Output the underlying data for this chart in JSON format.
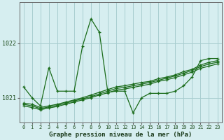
{
  "xlabel": "Graphe pression niveau de la mer (hPa)",
  "background_color": "#d6eef0",
  "grid_color": "#a8cdd0",
  "line_color": "#1a6b1a",
  "xlim": [
    -0.5,
    23.5
  ],
  "ylim": [
    1020.55,
    1022.75
  ],
  "yticks": [
    1021,
    1022
  ],
  "xticks": [
    0,
    1,
    2,
    3,
    4,
    5,
    6,
    7,
    8,
    9,
    10,
    11,
    12,
    13,
    14,
    15,
    16,
    17,
    18,
    19,
    20,
    21,
    22,
    23
  ],
  "series": [
    {
      "x": [
        0,
        1,
        2,
        3,
        4,
        5,
        6,
        7,
        8,
        9,
        10,
        11,
        12,
        13,
        14,
        15,
        16,
        17,
        18,
        19,
        20,
        21,
        22,
        23
      ],
      "y": [
        1021.2,
        1021.0,
        1020.85,
        1021.55,
        1021.12,
        1021.12,
        1021.12,
        1021.95,
        1022.45,
        1022.2,
        1021.1,
        1021.12,
        1021.12,
        1020.72,
        1021.0,
        1021.08,
        1021.08,
        1021.08,
        1021.12,
        1021.22,
        1021.38,
        1021.68,
        1021.72,
        1021.72
      ]
    },
    {
      "x": [
        0,
        1,
        2,
        3,
        4,
        5,
        6,
        7,
        8,
        9,
        10,
        11,
        12,
        13,
        14,
        15,
        16,
        17,
        18,
        19,
        20,
        21,
        22,
        23
      ],
      "y": [
        1020.9,
        1020.88,
        1020.82,
        1020.85,
        1020.88,
        1020.92,
        1020.96,
        1021.0,
        1021.05,
        1021.1,
        1021.15,
        1021.2,
        1021.22,
        1021.25,
        1021.28,
        1021.3,
        1021.35,
        1021.38,
        1021.42,
        1021.48,
        1021.52,
        1021.6,
        1021.65,
        1021.68
      ]
    },
    {
      "x": [
        0,
        1,
        2,
        3,
        4,
        5,
        6,
        7,
        8,
        9,
        10,
        11,
        12,
        13,
        14,
        15,
        16,
        17,
        18,
        19,
        20,
        21,
        22,
        23
      ],
      "y": [
        1020.88,
        1020.85,
        1020.8,
        1020.83,
        1020.86,
        1020.9,
        1020.94,
        1020.98,
        1021.02,
        1021.07,
        1021.12,
        1021.17,
        1021.19,
        1021.22,
        1021.25,
        1021.28,
        1021.32,
        1021.36,
        1021.4,
        1021.45,
        1021.5,
        1021.57,
        1021.62,
        1021.65
      ]
    },
    {
      "x": [
        0,
        1,
        2,
        3,
        4,
        5,
        6,
        7,
        8,
        9,
        10,
        11,
        12,
        13,
        14,
        15,
        16,
        17,
        18,
        19,
        20,
        21,
        22,
        23
      ],
      "y": [
        1020.85,
        1020.82,
        1020.78,
        1020.81,
        1020.84,
        1020.88,
        1020.92,
        1020.96,
        1021.0,
        1021.05,
        1021.09,
        1021.14,
        1021.16,
        1021.19,
        1021.22,
        1021.25,
        1021.3,
        1021.33,
        1021.37,
        1021.42,
        1021.47,
        1021.54,
        1021.58,
        1021.62
      ]
    }
  ]
}
